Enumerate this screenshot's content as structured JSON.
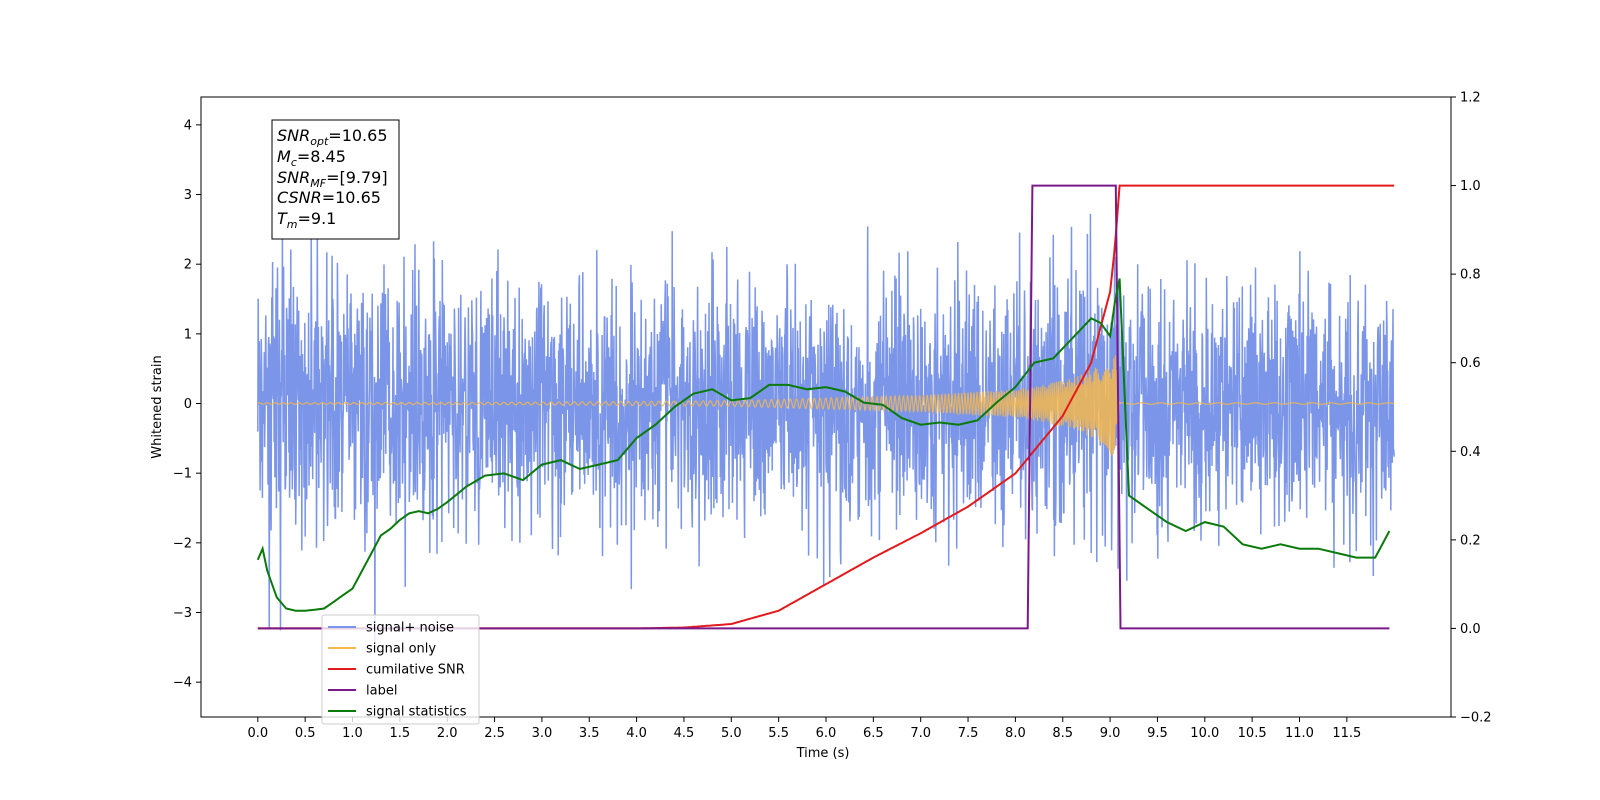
{
  "chart_data": {
    "type": "line",
    "xlabel": "Time (s)",
    "ylabel_left": "Whitened strain",
    "ylabel_right": "",
    "xlim": [
      -0.6,
      12.6
    ],
    "ylim_left": [
      -4.5,
      4.4
    ],
    "ylim_right": [
      -0.2,
      1.2
    ],
    "x_ticks": [
      "0.0",
      "0.5",
      "1.0",
      "1.5",
      "2.0",
      "2.5",
      "3.0",
      "3.5",
      "4.0",
      "4.5",
      "5.0",
      "5.5",
      "6.0",
      "6.5",
      "7.0",
      "7.5",
      "8.0",
      "8.5",
      "9.0",
      "9.5",
      "10.0",
      "10.5",
      "11.0",
      "11.5"
    ],
    "y_ticks_left": [
      "4",
      "3",
      "2",
      "1",
      "0",
      "−1",
      "−2",
      "−3",
      "−4"
    ],
    "y_ticks_right": [
      "1.2",
      "1.0",
      "0.8",
      "0.6",
      "0.4",
      "0.2",
      "0.0",
      "−0.2"
    ],
    "grid": false,
    "legend_position": "lower-left",
    "annotation": {
      "line1": {
        "sym": "SNR",
        "sub": "opt",
        "val": "=10.65"
      },
      "line2": {
        "sym": "M",
        "sub": "c",
        "val": "=8.45"
      },
      "line3": {
        "sym": "SNR",
        "sub": "MF",
        "val": "=[9.79]"
      },
      "line4": {
        "sym": "CSNR",
        "sub": "",
        "val": "=10.65"
      },
      "line5": {
        "sym": "T",
        "sub": "m",
        "val": "=9.1"
      }
    },
    "series": [
      {
        "name": "signal+ noise",
        "color": "#7b95e8",
        "axis": "left",
        "x_start": 0.0,
        "x_end": 12.0,
        "amplitude_typical": 1.6,
        "amplitude_max": 4.0
      },
      {
        "name": "signal only",
        "color": "#f5b74e",
        "axis": "left",
        "x": [
          0.0,
          3.0,
          5.0,
          6.0,
          7.0,
          7.5,
          8.0,
          8.3,
          8.6,
          8.9,
          9.05,
          9.1,
          12.0
        ],
        "envelope": [
          0.01,
          0.02,
          0.04,
          0.08,
          0.12,
          0.16,
          0.2,
          0.27,
          0.36,
          0.55,
          0.8,
          0.01,
          0.01
        ]
      },
      {
        "name": "cumilative SNR",
        "color": "#e31a1c",
        "axis": "right",
        "x": [
          0.0,
          4.0,
          4.5,
          5.0,
          5.5,
          6.0,
          6.5,
          7.0,
          7.5,
          8.0,
          8.5,
          8.8,
          9.0,
          9.05,
          9.1,
          12.0
        ],
        "values": [
          0.0,
          0.0,
          0.002,
          0.01,
          0.04,
          0.1,
          0.16,
          0.215,
          0.275,
          0.35,
          0.48,
          0.6,
          0.76,
          0.86,
          1.0,
          1.0
        ]
      },
      {
        "name": "label",
        "color": "#7a1a8a",
        "axis": "right",
        "x": [
          0.0,
          8.13,
          8.18,
          9.06,
          9.11,
          11.95
        ],
        "values": [
          0.0,
          0.0,
          1.0,
          1.0,
          0.0,
          0.0
        ]
      },
      {
        "name": "signal statistics",
        "color": "#0a7a0a",
        "axis": "right",
        "x": [
          0.0,
          0.05,
          0.1,
          0.2,
          0.3,
          0.4,
          0.5,
          0.6,
          0.7,
          0.8,
          0.9,
          1.0,
          1.1,
          1.2,
          1.3,
          1.4,
          1.5,
          1.6,
          1.7,
          1.8,
          1.9,
          2.0,
          2.2,
          2.4,
          2.6,
          2.8,
          3.0,
          3.2,
          3.4,
          3.6,
          3.8,
          4.0,
          4.2,
          4.4,
          4.6,
          4.8,
          5.0,
          5.2,
          5.4,
          5.6,
          5.8,
          6.0,
          6.2,
          6.4,
          6.6,
          6.8,
          7.0,
          7.2,
          7.4,
          7.6,
          7.8,
          8.0,
          8.2,
          8.4,
          8.6,
          8.8,
          8.9,
          9.0,
          9.05,
          9.1,
          9.2,
          9.4,
          9.6,
          9.8,
          10.0,
          10.2,
          10.4,
          10.6,
          10.8,
          11.0,
          11.2,
          11.4,
          11.6,
          11.8,
          11.95
        ],
        "values": [
          0.155,
          0.18,
          0.13,
          0.07,
          0.045,
          0.04,
          0.04,
          0.042,
          0.045,
          0.06,
          0.075,
          0.09,
          0.13,
          0.17,
          0.21,
          0.225,
          0.245,
          0.26,
          0.265,
          0.26,
          0.27,
          0.285,
          0.32,
          0.345,
          0.35,
          0.335,
          0.37,
          0.38,
          0.36,
          0.37,
          0.38,
          0.43,
          0.46,
          0.5,
          0.53,
          0.54,
          0.515,
          0.52,
          0.55,
          0.55,
          0.54,
          0.545,
          0.535,
          0.51,
          0.505,
          0.475,
          0.46,
          0.465,
          0.46,
          0.47,
          0.51,
          0.545,
          0.6,
          0.61,
          0.655,
          0.7,
          0.69,
          0.66,
          0.735,
          0.79,
          0.3,
          0.27,
          0.24,
          0.22,
          0.24,
          0.23,
          0.19,
          0.18,
          0.19,
          0.18,
          0.18,
          0.17,
          0.16,
          0.16,
          0.22
        ]
      }
    ]
  }
}
